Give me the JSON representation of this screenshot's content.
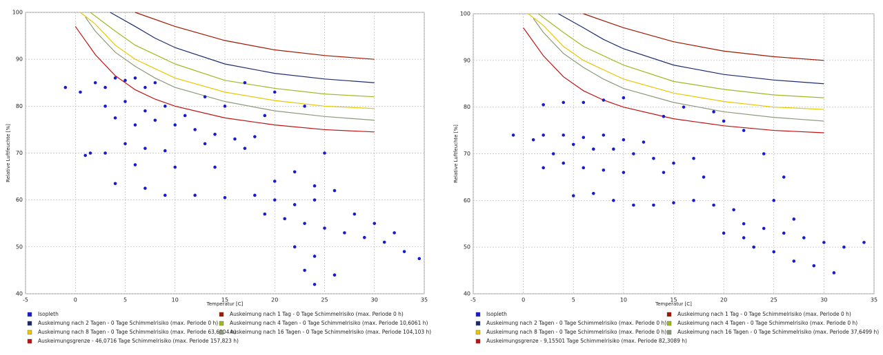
{
  "chart_data": [
    {
      "type": "scatter",
      "xlabel": "Temperatur [C]",
      "ylabel": "Relative Luftfeuchte [%]",
      "xlim": [
        -5,
        35
      ],
      "ylim": [
        40,
        100
      ],
      "xticks": [
        -5,
        0,
        5,
        10,
        15,
        20,
        25,
        30,
        35
      ],
      "yticks": [
        40,
        50,
        60,
        70,
        80,
        90,
        100
      ],
      "grid": true,
      "series": [
        {
          "name": "Isopleth",
          "kind": "scatter",
          "color": "#1a1ad0",
          "x": [
            -1,
            0.5,
            1,
            2,
            3,
            4,
            5,
            6,
            7,
            8,
            3,
            5,
            7,
            9,
            11,
            4,
            6,
            8,
            10,
            12,
            14,
            16,
            18,
            5,
            7,
            9,
            13,
            17,
            1.5,
            3,
            6,
            10,
            14,
            4,
            7,
            9,
            12,
            15,
            18,
            20,
            22,
            24,
            19,
            21,
            23,
            25,
            27,
            29,
            31,
            33,
            34.5,
            22,
            24,
            23,
            24,
            26,
            20,
            22,
            24,
            17,
            20,
            23,
            15,
            19,
            13,
            25,
            26,
            28,
            30,
            32
          ],
          "values": [
            84,
            83,
            69.5,
            85,
            84,
            86,
            85.5,
            86,
            84,
            85,
            80,
            81,
            79,
            80,
            78,
            77.5,
            76,
            77,
            76,
            75,
            74,
            73,
            73.5,
            72,
            71,
            70.5,
            72,
            71,
            70,
            70,
            67.5,
            67,
            67,
            63.5,
            62.5,
            61,
            61,
            60.5,
            61,
            60,
            59,
            60,
            57,
            56,
            55,
            54,
            53,
            52,
            51,
            49,
            47.5,
            50,
            48,
            45,
            42,
            44,
            64,
            66,
            63,
            85,
            83,
            80,
            80,
            78,
            82,
            70,
            62,
            57,
            55,
            53
          ]
        },
        {
          "name": "Auskeimung nach 1 Tag - 0 Tage Schimmelrisiko (max. Periode 0 h)",
          "kind": "line",
          "color": "#a01800",
          "x": [
            6,
            10,
            15,
            20,
            25,
            30
          ],
          "values": [
            100,
            97,
            94,
            92,
            90.8,
            90
          ]
        },
        {
          "name": "Auskeimung nach 2 Tagen - 0 Tage Schimmelrisiko (max. Periode 0 h)",
          "kind": "line",
          "color": "#1c2a6e",
          "x": [
            3.5,
            6,
            8,
            10,
            15,
            20,
            25,
            30
          ],
          "values": [
            100,
            97,
            94.5,
            92.5,
            89,
            87,
            85.8,
            85
          ]
        },
        {
          "name": "Auskeimung nach 4 Tagen - 0 Tage Schimmelrisiko (max. Periode 10,6061 h)",
          "kind": "line",
          "color": "#a0b820",
          "x": [
            1.5,
            4,
            6,
            8,
            10,
            15,
            20,
            25,
            30
          ],
          "values": [
            100,
            96,
            93,
            91,
            89,
            85.5,
            83.8,
            82.6,
            82
          ]
        },
        {
          "name": "Auskeimung nach 8 Tagen - 0 Tage Schimmelrisiko (max. Periode 63,6904 h)",
          "kind": "line",
          "color": "#e8c800",
          "x": [
            0.5,
            2,
            4,
            6,
            8,
            10,
            15,
            20,
            25,
            30
          ],
          "values": [
            100,
            97.5,
            93,
            90,
            88,
            86,
            83,
            81.2,
            80,
            79.5
          ]
        },
        {
          "name": "Auskeimung nach 16 Tagen - 0 Tage Schimmelrisiko (max. Periode 104,103 h)",
          "kind": "line",
          "color": "#8a9a7a",
          "x": [
            1,
            2,
            4,
            6,
            8,
            10,
            15,
            20,
            25,
            30
          ],
          "values": [
            99,
            96,
            91.5,
            88.5,
            86,
            84,
            81,
            79,
            77.8,
            77
          ]
        },
        {
          "name": "Auskeimungsgrenze - 46,0716 Tage Schimmelrisiko (max. Periode 157,823 h)",
          "kind": "line",
          "color": "#c01010",
          "x": [
            0,
            2,
            4,
            6,
            8,
            10,
            15,
            20,
            25,
            30
          ],
          "values": [
            97,
            91,
            86.5,
            83.5,
            81.5,
            80,
            77.5,
            76,
            75,
            74.5
          ]
        }
      ]
    },
    {
      "type": "scatter",
      "xlabel": "Temperatur [C]",
      "ylabel": "Relative Luftfeuchte [%]",
      "xlim": [
        -5,
        35
      ],
      "ylim": [
        40,
        100
      ],
      "xticks": [
        -5,
        0,
        5,
        10,
        15,
        20,
        25,
        30,
        35
      ],
      "yticks": [
        40,
        50,
        60,
        70,
        80,
        90,
        100
      ],
      "grid": true,
      "series": [
        {
          "name": "Isopleth",
          "kind": "scatter",
          "color": "#1a1ad0",
          "x": [
            -1,
            1,
            2,
            4,
            6,
            8,
            10,
            12,
            2,
            4,
            6,
            8,
            10,
            3,
            5,
            7,
            9,
            11,
            13,
            15,
            17,
            2,
            4,
            6,
            8,
            10,
            14,
            5,
            7,
            9,
            11,
            13,
            15,
            17,
            19,
            21,
            22,
            24,
            26,
            28,
            30,
            32,
            34,
            23,
            25,
            27,
            29,
            31,
            20,
            22,
            19,
            16,
            20,
            22,
            24,
            26,
            25,
            27,
            18,
            14
          ],
          "values": [
            74,
            73,
            74,
            74,
            73.5,
            74,
            73,
            72.5,
            80.5,
            81,
            81,
            81.5,
            82,
            70,
            72,
            71,
            71,
            70,
            69,
            68,
            69,
            67,
            68,
            67,
            66.5,
            66,
            66,
            61,
            61.5,
            60,
            59,
            59,
            59.5,
            60,
            59,
            58,
            55,
            54,
            53,
            52,
            51,
            50,
            51,
            50,
            49,
            47,
            46,
            44.5,
            53,
            52,
            79,
            80,
            77,
            75,
            70,
            65,
            60,
            56,
            65,
            78
          ]
        },
        {
          "name": "Auskeimung nach 1 Tag - 0 Tage Schimmelrisiko (max. Periode 0 h)",
          "kind": "line",
          "color": "#a01800",
          "x": [
            6,
            10,
            15,
            20,
            25,
            30
          ],
          "values": [
            100,
            97,
            94,
            92,
            90.8,
            90
          ]
        },
        {
          "name": "Auskeimung nach 2 Tagen - 0 Tage Schimmelrisiko (max. Periode 0 h)",
          "kind": "line",
          "color": "#1c2a6e",
          "x": [
            3.5,
            6,
            8,
            10,
            15,
            20,
            25,
            30
          ],
          "values": [
            100,
            97,
            94.5,
            92.5,
            89,
            87,
            85.8,
            85
          ]
        },
        {
          "name": "Auskeimung nach 4 Tagen - 0 Tage Schimmelrisiko (max. Periode 0 h)",
          "kind": "line",
          "color": "#a0b820",
          "x": [
            1.5,
            4,
            6,
            8,
            10,
            15,
            20,
            25,
            30
          ],
          "values": [
            100,
            96,
            93,
            91,
            89,
            85.5,
            83.8,
            82.6,
            82
          ]
        },
        {
          "name": "Auskeimung nach 8 Tagen - 0 Tage Schimmelrisiko (max. Periode 0 h)",
          "kind": "line",
          "color": "#e8c800",
          "x": [
            0.5,
            2,
            4,
            6,
            8,
            10,
            15,
            20,
            25,
            30
          ],
          "values": [
            100,
            97.5,
            93,
            90,
            88,
            86,
            83,
            81.2,
            80,
            79.5
          ]
        },
        {
          "name": "Auskeimung nach 16 Tagen - 0 Tage Schimmelrisiko (max. Periode 37,6499 h)",
          "kind": "line",
          "color": "#8a9a7a",
          "x": [
            1,
            2,
            4,
            6,
            8,
            10,
            15,
            20,
            25,
            30
          ],
          "values": [
            99,
            96,
            91.5,
            88.5,
            86,
            84,
            81,
            79,
            77.8,
            77
          ]
        },
        {
          "name": "Auskeimungsgrenze - 9,15501 Tage Schimmelrisiko (max. Periode 82,3089 h)",
          "kind": "line",
          "color": "#c01010",
          "x": [
            0,
            2,
            4,
            6,
            8,
            10,
            15,
            20,
            25,
            30
          ],
          "values": [
            97,
            91,
            86.5,
            83.5,
            81.5,
            80,
            77.5,
            76,
            75,
            74.5
          ]
        }
      ]
    }
  ]
}
